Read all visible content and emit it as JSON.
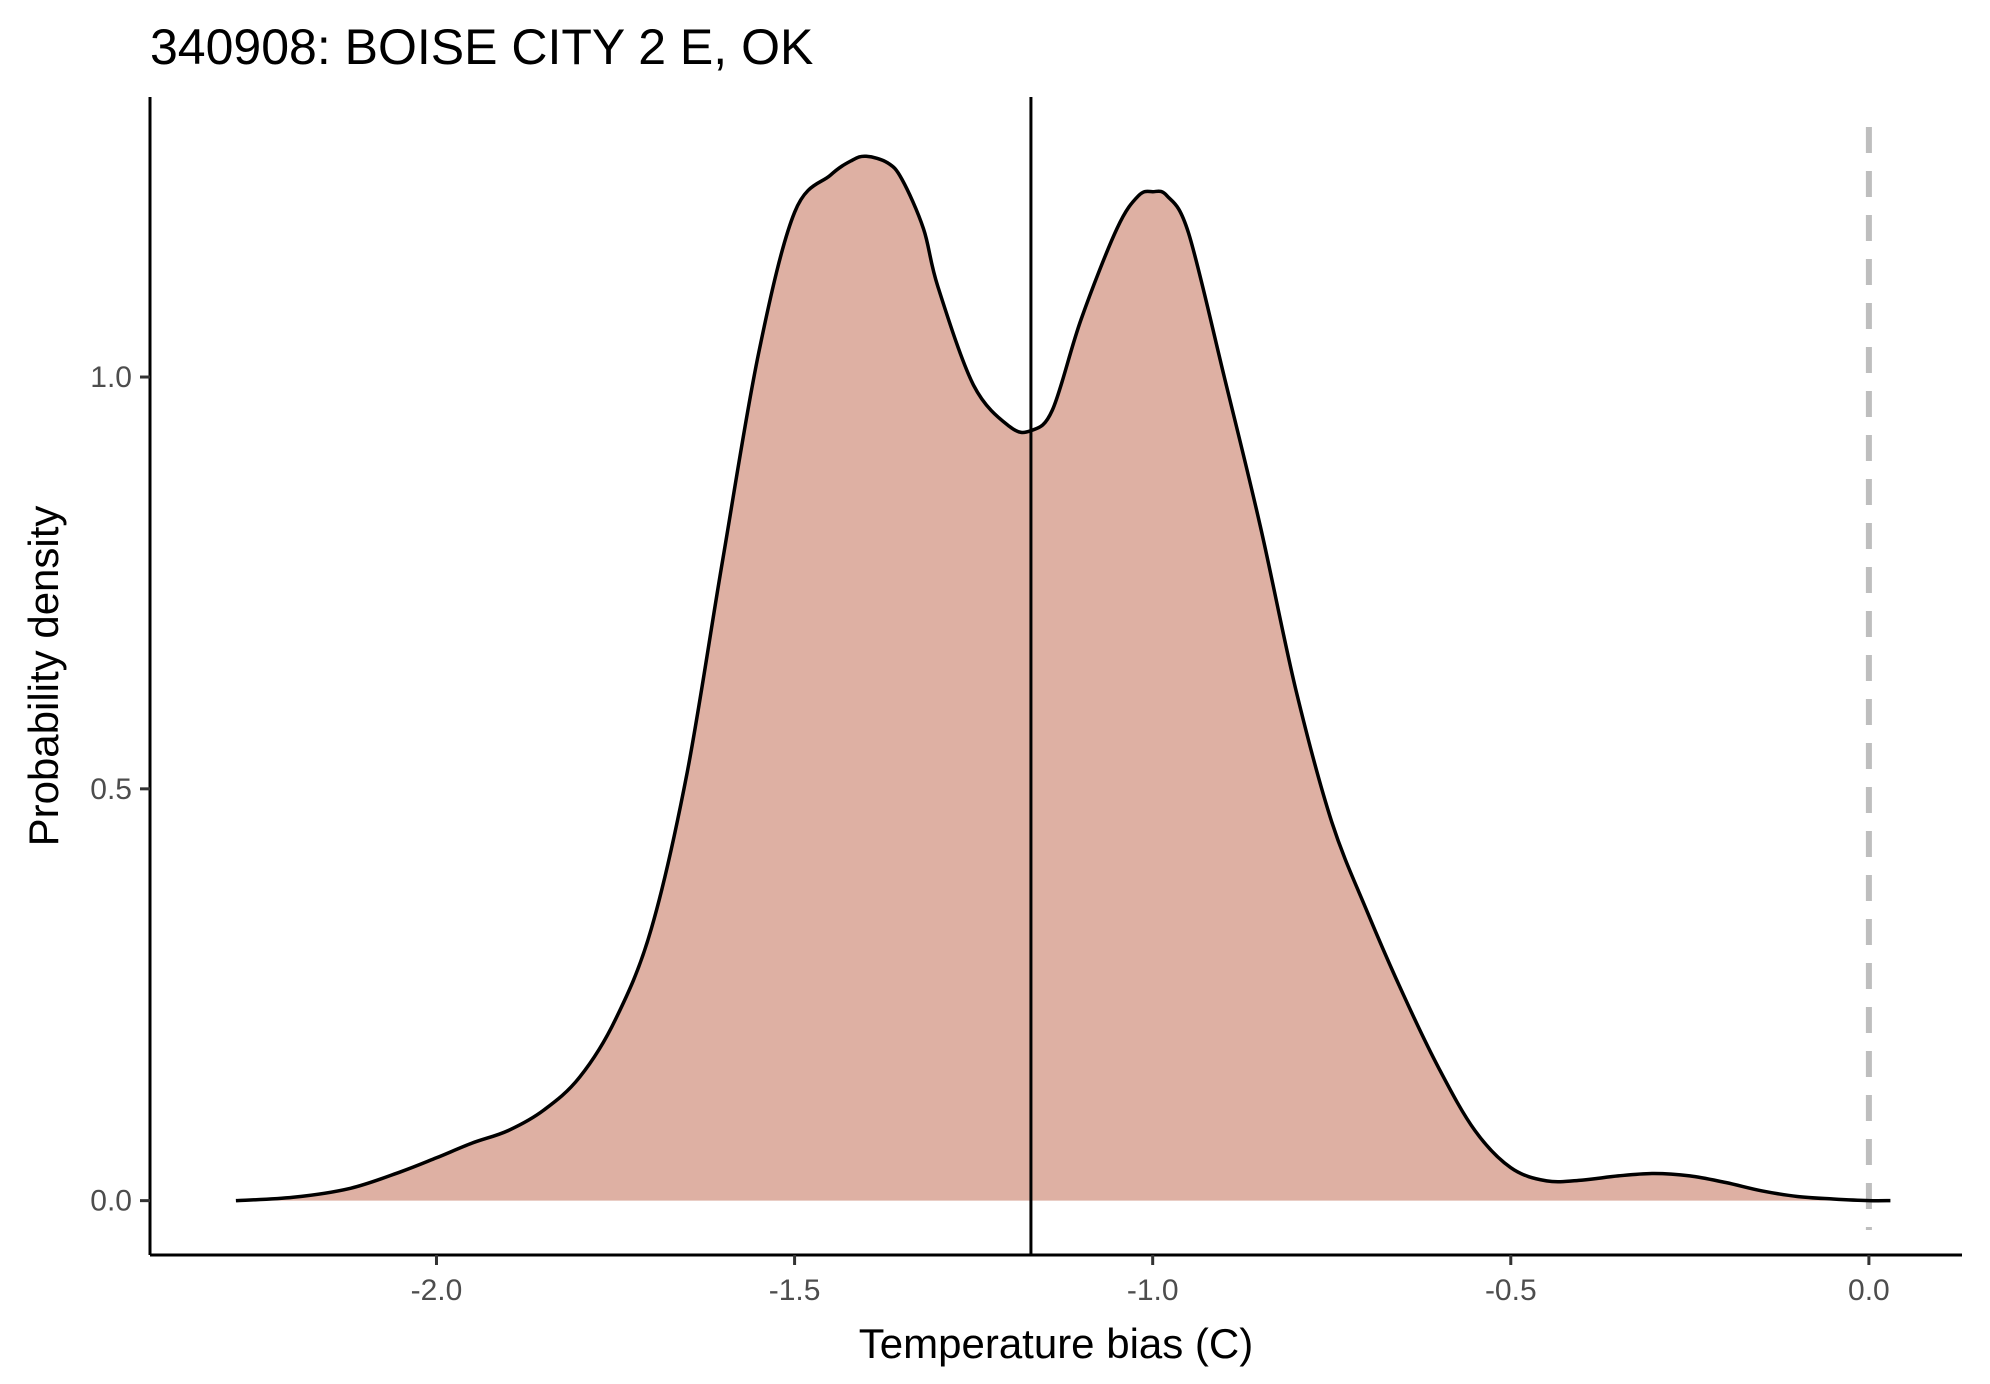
{
  "chart_data": {
    "type": "area",
    "title": "340908: BOISE CITY 2 E, OK",
    "xlabel": "Temperature bias (C)",
    "ylabel": "Probability density",
    "xlim": [
      -2.4,
      0.13
    ],
    "ylim": [
      -0.066,
      1.34
    ],
    "x_ticks": [
      -2.0,
      -1.5,
      -1.0,
      -0.5,
      0.0
    ],
    "x_tick_labels": [
      "-2.0",
      "-1.5",
      "-1.0",
      "-0.5",
      "0.0"
    ],
    "y_ticks": [
      0.0,
      0.5,
      1.0
    ],
    "y_tick_labels": [
      "0.0",
      "0.5",
      "1.0"
    ],
    "grid": false,
    "legend": "none",
    "fill_color": "#deb0a3",
    "line_color": "#000000",
    "reference_lines": [
      {
        "name": "median",
        "x": -1.17,
        "style": "solid",
        "color": "#000000"
      },
      {
        "name": "zero",
        "x": 0.0,
        "style": "dashed",
        "color": "#bebebe"
      }
    ],
    "density": {
      "x": [
        -2.28,
        -2.2,
        -2.12,
        -2.05,
        -2.0,
        -1.95,
        -1.9,
        -1.85,
        -1.8,
        -1.75,
        -1.7,
        -1.65,
        -1.6,
        -1.55,
        -1.5,
        -1.45,
        -1.42,
        -1.4,
        -1.37,
        -1.35,
        -1.32,
        -1.3,
        -1.25,
        -1.2,
        -1.17,
        -1.14,
        -1.1,
        -1.05,
        -1.02,
        -1.0,
        -0.98,
        -0.95,
        -0.9,
        -0.85,
        -0.8,
        -0.75,
        -0.7,
        -0.65,
        -0.6,
        -0.55,
        -0.5,
        -0.45,
        -0.4,
        -0.35,
        -0.3,
        -0.25,
        -0.2,
        -0.15,
        -0.1,
        -0.05,
        0.0,
        0.03
      ],
      "y": [
        0.0,
        0.004,
        0.015,
        0.035,
        0.052,
        0.07,
        0.085,
        0.11,
        0.15,
        0.22,
        0.33,
        0.52,
        0.78,
        1.03,
        1.2,
        1.245,
        1.263,
        1.268,
        1.26,
        1.24,
        1.18,
        1.11,
        0.99,
        0.94,
        0.935,
        0.96,
        1.07,
        1.18,
        1.22,
        1.225,
        1.22,
        1.175,
        1.0,
        0.82,
        0.62,
        0.46,
        0.35,
        0.25,
        0.16,
        0.085,
        0.04,
        0.024,
        0.025,
        0.03,
        0.033,
        0.03,
        0.022,
        0.012,
        0.005,
        0.002,
        0.0,
        0.0
      ]
    }
  }
}
